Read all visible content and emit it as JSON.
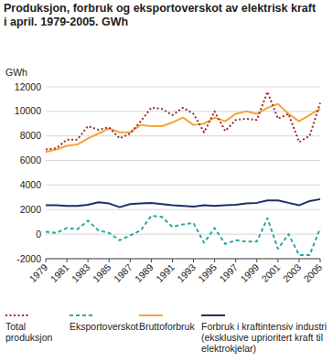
{
  "chart_data": {
    "type": "line",
    "title": "Produksjon, forbruk og eksportoverskot av elektrisk kraft i april. 1979-2005. GWh",
    "y_label": "GWh",
    "x": [
      1979,
      1980,
      1981,
      1982,
      1983,
      1984,
      1985,
      1986,
      1987,
      1988,
      1989,
      1990,
      1991,
      1992,
      1993,
      1994,
      1995,
      1996,
      1997,
      1998,
      1999,
      2000,
      2001,
      2002,
      2003,
      2004,
      2005
    ],
    "xlim": [
      1979,
      2005
    ],
    "xticks": [
      1979,
      1981,
      1983,
      1985,
      1987,
      1989,
      1991,
      1993,
      1995,
      1997,
      1999,
      2001,
      2003,
      2005
    ],
    "ylim": [
      -2000,
      12000
    ],
    "yticks": [
      -2000,
      0,
      2000,
      4000,
      6000,
      8000,
      10000,
      12000
    ],
    "grid": true,
    "legend": "bottom",
    "series": [
      {
        "name": "Total produksjon",
        "color": "#9e2a2b",
        "line_style": "dotted",
        "values": [
          6900,
          7000,
          7700,
          7700,
          8800,
          8500,
          8700,
          7800,
          8200,
          9200,
          10300,
          10200,
          9700,
          10300,
          9800,
          8300,
          10000,
          8400,
          9300,
          9400,
          9300,
          11600,
          9400,
          9800,
          7500,
          8000,
          10700
        ]
      },
      {
        "name": "Eksportoverskot",
        "color": "#2ba7a0",
        "line_style": "dashed",
        "values": [
          200,
          100,
          500,
          400,
          1100,
          300,
          100,
          -500,
          -100,
          300,
          1500,
          1400,
          600,
          800,
          900,
          -700,
          500,
          -800,
          -500,
          -600,
          -600,
          1300,
          -1200,
          0,
          -1700,
          -1700,
          500
        ]
      },
      {
        "name": "Bruttoforbruk",
        "color": "#f5a33a",
        "line_style": "solid",
        "values": [
          6700,
          6900,
          7200,
          7300,
          7800,
          8200,
          8600,
          8300,
          8300,
          8900,
          8800,
          8800,
          9100,
          9500,
          8900,
          9000,
          9500,
          9200,
          9800,
          10000,
          9800,
          10300,
          10600,
          9800,
          9200,
          9700,
          10200
        ]
      },
      {
        "name": "Forbruk i kraftintensiv industri (eksklusive uprioritert kraft til elektrokjelar)",
        "color": "#1f2d6b",
        "line_style": "solid",
        "values": [
          2350,
          2350,
          2300,
          2300,
          2400,
          2600,
          2500,
          2200,
          2450,
          2500,
          2550,
          2450,
          2350,
          2300,
          2250,
          2350,
          2300,
          2350,
          2400,
          2500,
          2550,
          2750,
          2750,
          2550,
          2350,
          2700,
          2850
        ]
      }
    ]
  }
}
